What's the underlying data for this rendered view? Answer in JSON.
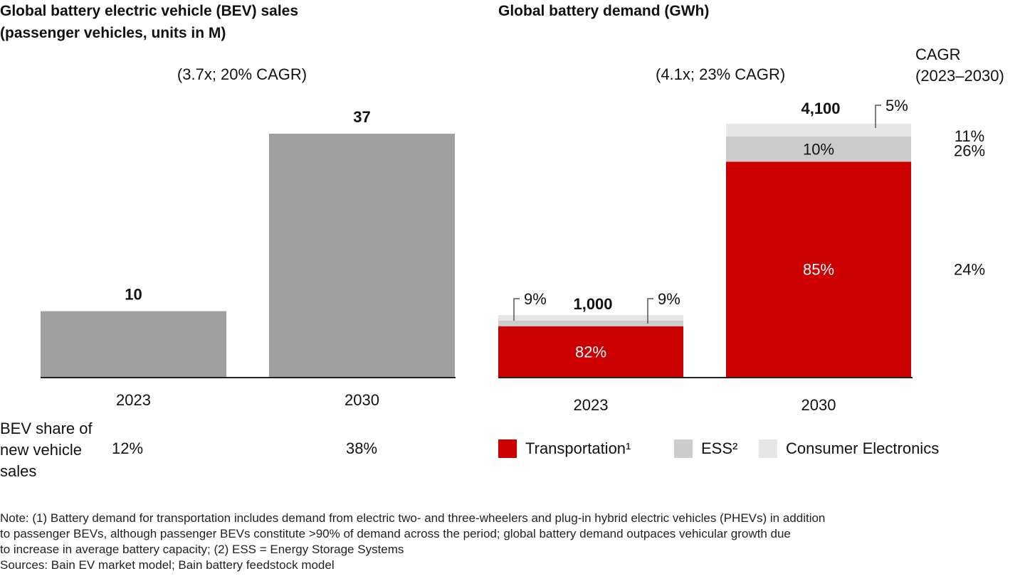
{
  "chart_data": [
    {
      "type": "bar",
      "title": "Global battery electric vehicle (BEV) sales",
      "subtitle": "(passenger vehicles, units in M)",
      "annotation": "(3.7x; 20% CAGR)",
      "categories": [
        "2023",
        "2030"
      ],
      "values": [
        10,
        37
      ],
      "value_labels": [
        "10",
        "37"
      ],
      "ylim": [
        0,
        37
      ],
      "grid": false,
      "color": "#a0a0a0",
      "share_row": {
        "label_lines": [
          "BEV share of",
          "new vehicle",
          "sales"
        ],
        "values": [
          "12%",
          "38%"
        ]
      }
    },
    {
      "type": "bar",
      "stacked": true,
      "title": "Global battery demand (GWh)",
      "annotation": "(4.1x; 23% CAGR)",
      "categories": [
        "2023",
        "2030"
      ],
      "totals": [
        1000,
        4100
      ],
      "total_labels": [
        "1,000",
        "4,100"
      ],
      "ylim": [
        0,
        4100
      ],
      "grid": false,
      "series": [
        {
          "name": "Transportation¹",
          "color": "#cc0000",
          "shares": [
            82,
            85
          ],
          "labels": [
            "82%",
            "85%"
          ],
          "cagr": "24%"
        },
        {
          "name": "ESS²",
          "color": "#cccccc",
          "shares": [
            9,
            10
          ],
          "labels": [
            "9%",
            "10%"
          ],
          "cagr": "26%"
        },
        {
          "name": "Consumer Electronics",
          "color": "#e6e6e6",
          "shares": [
            9,
            5
          ],
          "labels": [
            "9%",
            "5%"
          ],
          "cagr": "11%"
        }
      ],
      "cagr_header": [
        "CAGR",
        "(2023–2030)"
      ],
      "legend_position": "bottom"
    }
  ],
  "footnotes": [
    "Note: (1) Battery demand for transportation includes demand from electric two- and three-wheelers and plug-in hybrid electric vehicles (PHEVs) in addition",
    "to passenger BEVs, although passenger BEVs constitute >90% of demand across the period; global battery demand outpaces vehicular growth due",
    "to increase in average battery capacity; (2) ESS = Energy Storage Systems",
    "Sources: Bain EV market model; Bain battery feedstock model"
  ]
}
